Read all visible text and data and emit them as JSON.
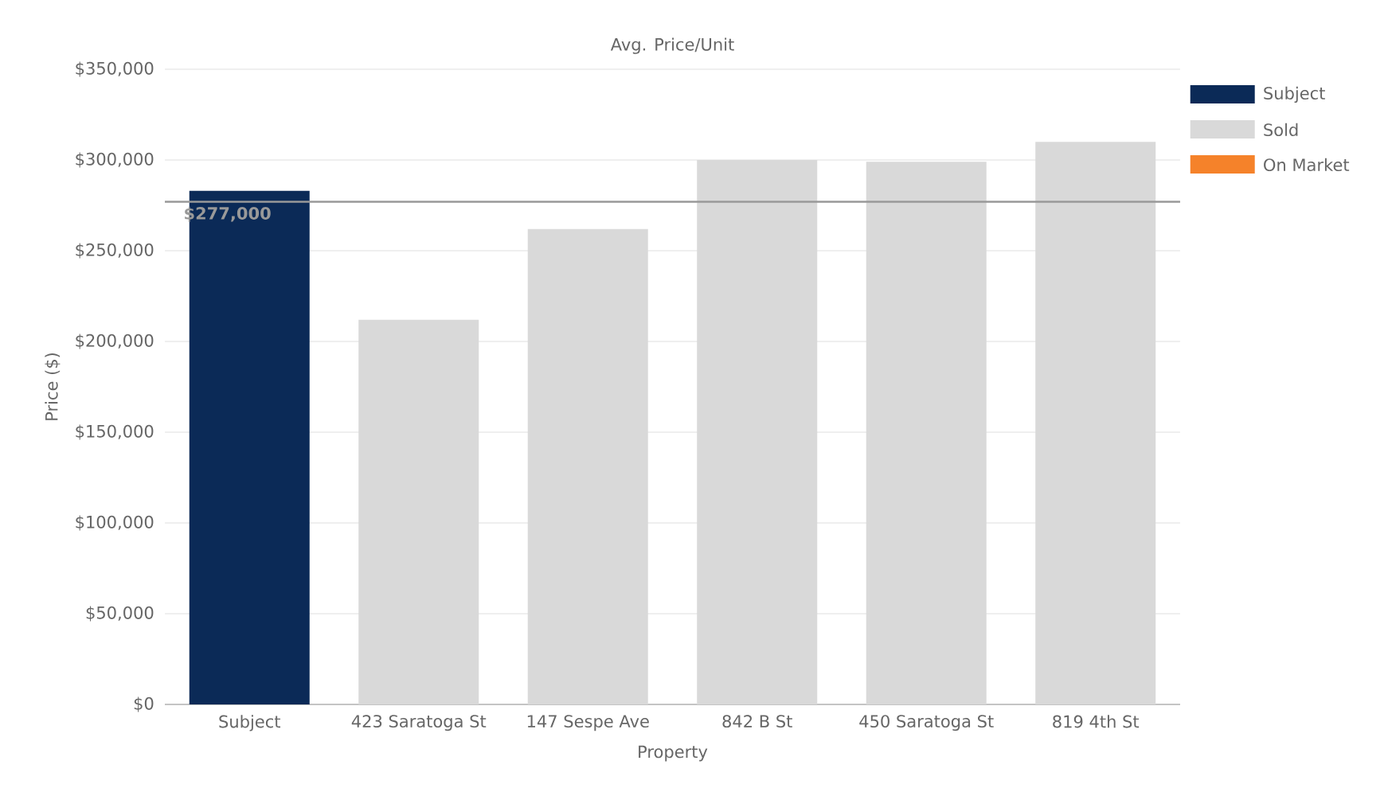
{
  "chart_data": {
    "type": "bar",
    "title": "Avg. Price/Unit",
    "xlabel": "Property",
    "ylabel": "Price ($)",
    "categories": [
      "Subject",
      "423 Saratoga St",
      "147 Sespe Ave",
      "842 B St",
      "450 Saratoga St",
      "819 4th St"
    ],
    "series": [
      {
        "name": "Subject",
        "color": "#0b2a57",
        "values": [
          283000,
          null,
          null,
          null,
          null,
          null
        ]
      },
      {
        "name": "Sold",
        "color": "#d9d9d9",
        "values": [
          null,
          212000,
          262000,
          300000,
          299000,
          310000
        ]
      },
      {
        "name": "On Market",
        "color": "#f5822a",
        "values": [
          null,
          null,
          null,
          null,
          null,
          null
        ]
      }
    ],
    "ylim": [
      0,
      350000
    ],
    "yticks": [
      {
        "value": 0,
        "label": "$0"
      },
      {
        "value": 50000,
        "label": "$50,000"
      },
      {
        "value": 100000,
        "label": "$100,000"
      },
      {
        "value": 150000,
        "label": "$150,000"
      },
      {
        "value": 200000,
        "label": "$200,000"
      },
      {
        "value": 250000,
        "label": "$250,000"
      },
      {
        "value": 300000,
        "label": "$300,000"
      },
      {
        "value": 350000,
        "label": "$350,000"
      }
    ],
    "ref_lines": [
      {
        "axis": "y",
        "value": 277000,
        "label": "$277,000",
        "color": "#999999"
      }
    ],
    "grid": "y",
    "legend": "top right"
  }
}
